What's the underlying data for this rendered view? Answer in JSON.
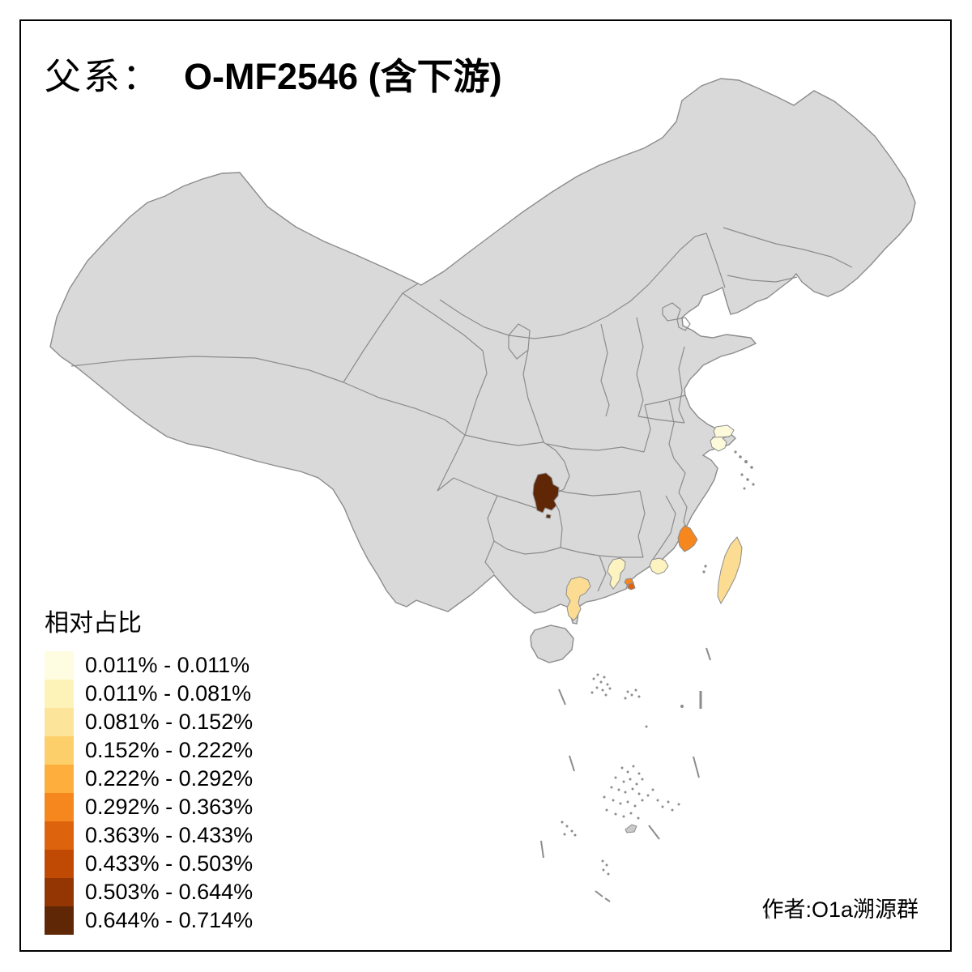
{
  "title": {
    "label_zh": "父系：",
    "haplogroup": "O-MF2546 (含下游)"
  },
  "legend": {
    "title": "相对占比",
    "bins": [
      {
        "label": "0.011% - 0.011%",
        "color": "#FFFDE1"
      },
      {
        "label": "0.011% - 0.081%",
        "color": "#FDF3B8"
      },
      {
        "label": "0.081% - 0.152%",
        "color": "#FCE59A"
      },
      {
        "label": "0.152% - 0.222%",
        "color": "#FDCF6B"
      },
      {
        "label": "0.222% - 0.292%",
        "color": "#FDAE3C"
      },
      {
        "label": "0.292% - 0.363%",
        "color": "#F5871E"
      },
      {
        "label": "0.363% - 0.433%",
        "color": "#DD640D"
      },
      {
        "label": "0.433% - 0.503%",
        "color": "#C04A03"
      },
      {
        "label": "0.503% - 0.644%",
        "color": "#933604"
      },
      {
        "label": "0.644% - 0.714%",
        "color": "#5F2706"
      }
    ]
  },
  "attribution": "作者:O1a溯源群",
  "map": {
    "land_fill": "#D9D9D9",
    "border_color": "#8C8C8C",
    "frame_color": "#000000",
    "background": "#FFFFFF",
    "regions": [
      {
        "id": "region-central-dark",
        "range": "0.644% - 0.714%",
        "color": "#5F2706"
      },
      {
        "id": "region-fujian-coast",
        "range": "0.292% - 0.363%",
        "color": "#F5871E"
      },
      {
        "id": "region-pearl-delta-a",
        "range": "0.292% - 0.363%",
        "color": "#F5871E"
      },
      {
        "id": "region-pearl-delta-b",
        "range": "0.363% - 0.433%",
        "color": "#DD640D"
      },
      {
        "id": "region-guangdong-west",
        "range": "0.011% - 0.081%",
        "color": "#FCF3C0"
      },
      {
        "id": "region-guangdong-east",
        "range": "0.011% - 0.081%",
        "color": "#FCF3C0"
      },
      {
        "id": "region-leizhou-peninsula",
        "range": "0.081% - 0.152%",
        "color": "#FBDC92"
      },
      {
        "id": "region-taiwan",
        "range": "0.081% - 0.152%",
        "color": "#FBDC92"
      },
      {
        "id": "region-yangtze-delta",
        "range": "0.011% - 0.011%",
        "color": "#FDFADC"
      }
    ]
  }
}
